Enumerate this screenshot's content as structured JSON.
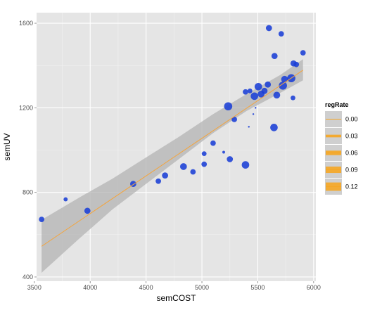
{
  "chart_data": {
    "type": "scatter",
    "xlabel": "semCOST",
    "ylabel": "semUV",
    "xlim": [
      3520,
      6020
    ],
    "ylim": [
      380,
      1650
    ],
    "x_ticks": [
      3500,
      4000,
      4500,
      5000,
      5500,
      6000
    ],
    "y_ticks": [
      400,
      800,
      1200,
      1600
    ],
    "x_tick_labels": [
      "3500",
      "4000",
      "4500",
      "5000",
      "5500",
      "6000"
    ],
    "y_tick_labels": [
      "400",
      "800",
      "1200",
      "1600"
    ],
    "grid": true,
    "legend_position": "right",
    "legend": {
      "title": "regRate",
      "entries": [
        {
          "label": "0.00",
          "value": 0.0
        },
        {
          "label": "0.03",
          "value": 0.03
        },
        {
          "label": "0.06",
          "value": 0.06
        },
        {
          "label": "0.09",
          "value": 0.09
        },
        {
          "label": "0.12",
          "value": 0.12
        }
      ]
    },
    "colors": {
      "panel": "#e5e5e5",
      "grid": "#ffffff",
      "point": "#1a3fd6",
      "fit_line": "#f5a43a",
      "ribbon": "#b3b3b3",
      "legend_key_fill": "#f5a623"
    },
    "points": [
      {
        "x": 3565,
        "y": 672,
        "r": 0.06
      },
      {
        "x": 3780,
        "y": 767,
        "r": 0.04
      },
      {
        "x": 3975,
        "y": 713,
        "r": 0.07
      },
      {
        "x": 4385,
        "y": 840,
        "r": 0.07
      },
      {
        "x": 4610,
        "y": 853,
        "r": 0.06
      },
      {
        "x": 4670,
        "y": 880,
        "r": 0.07
      },
      {
        "x": 4835,
        "y": 922,
        "r": 0.08
      },
      {
        "x": 4920,
        "y": 897,
        "r": 0.06
      },
      {
        "x": 5020,
        "y": 933,
        "r": 0.06
      },
      {
        "x": 5020,
        "y": 983,
        "r": 0.05
      },
      {
        "x": 5100,
        "y": 1033,
        "r": 0.06
      },
      {
        "x": 5195,
        "y": 990,
        "r": 0.02
      },
      {
        "x": 5250,
        "y": 957,
        "r": 0.07
      },
      {
        "x": 5390,
        "y": 930,
        "r": 0.09
      },
      {
        "x": 5235,
        "y": 1207,
        "r": 0.1
      },
      {
        "x": 5290,
        "y": 1145,
        "r": 0.06
      },
      {
        "x": 5390,
        "y": 1275,
        "r": 0.06
      },
      {
        "x": 5430,
        "y": 1280,
        "r": 0.05
      },
      {
        "x": 5420,
        "y": 1110,
        "r": 0.005
      },
      {
        "x": 5460,
        "y": 1170,
        "r": 0.005
      },
      {
        "x": 5480,
        "y": 1200,
        "r": 0.005
      },
      {
        "x": 5470,
        "y": 1255,
        "r": 0.09
      },
      {
        "x": 5505,
        "y": 1300,
        "r": 0.09
      },
      {
        "x": 5530,
        "y": 1265,
        "r": 0.08
      },
      {
        "x": 5560,
        "y": 1280,
        "r": 0.07
      },
      {
        "x": 5590,
        "y": 1310,
        "r": 0.07
      },
      {
        "x": 5600,
        "y": 1577,
        "r": 0.07
      },
      {
        "x": 5645,
        "y": 1107,
        "r": 0.09
      },
      {
        "x": 5650,
        "y": 1445,
        "r": 0.07
      },
      {
        "x": 5670,
        "y": 1260,
        "r": 0.08
      },
      {
        "x": 5710,
        "y": 1550,
        "r": 0.06
      },
      {
        "x": 5725,
        "y": 1305,
        "r": 0.1
      },
      {
        "x": 5740,
        "y": 1335,
        "r": 0.08
      },
      {
        "x": 5800,
        "y": 1340,
        "r": 0.1
      },
      {
        "x": 5815,
        "y": 1247,
        "r": 0.05
      },
      {
        "x": 5820,
        "y": 1410,
        "r": 0.07
      },
      {
        "x": 5845,
        "y": 1405,
        "r": 0.06
      },
      {
        "x": 5905,
        "y": 1460,
        "r": 0.06
      }
    ],
    "fit_line": {
      "x": [
        3565,
        5905
      ],
      "y": [
        545,
        1378
      ]
    },
    "ribbon": {
      "x": [
        3565,
        3900,
        4200,
        4500,
        4800,
        5100,
        5400,
        5700,
        5905
      ],
      "y_lower": [
        420,
        580,
        720,
        840,
        960,
        1080,
        1185,
        1270,
        1330
      ],
      "y_upper": [
        670,
        775,
        865,
        965,
        1065,
        1170,
        1265,
        1355,
        1430
      ]
    }
  }
}
